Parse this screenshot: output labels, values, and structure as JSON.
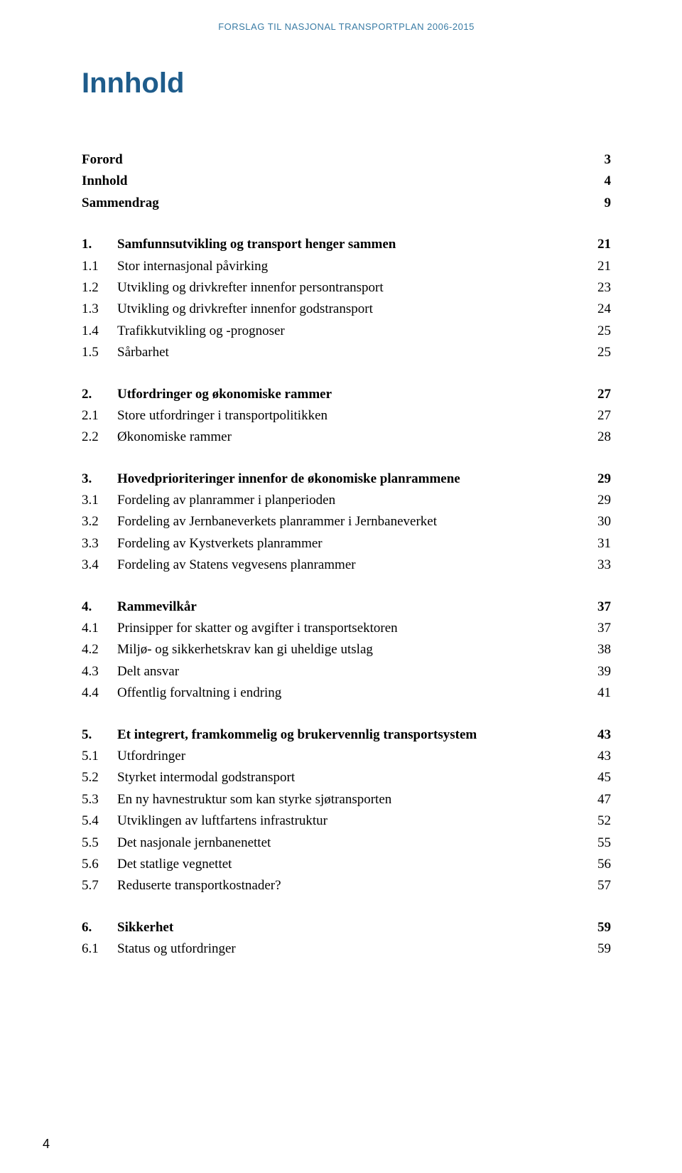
{
  "colors": {
    "header_text": "#3a7ca5",
    "title_text": "#1e5c8b",
    "body_text": "#000000",
    "background": "#ffffff"
  },
  "typography": {
    "header_font": "Arial",
    "title_font": "Arial",
    "body_font": "Times New Roman",
    "header_size_pt": 10,
    "title_size_pt": 30,
    "body_size_pt": 14
  },
  "header": "FORSLAG TIL NASJONAL TRANSPORTPLAN 2006-2015",
  "title": "Innhold",
  "front": [
    {
      "label": "Forord",
      "page": "3"
    },
    {
      "label": "Innhold",
      "page": "4"
    },
    {
      "label": "Sammendrag",
      "page": "9"
    }
  ],
  "sections": [
    {
      "num": "1.",
      "title": "Samfunnsutvikling og transport henger sammen",
      "page": "21",
      "items": [
        {
          "num": "1.1",
          "label": "Stor internasjonal påvirking",
          "page": "21"
        },
        {
          "num": "1.2",
          "label": "Utvikling og drivkrefter innenfor persontransport",
          "page": "23"
        },
        {
          "num": "1.3",
          "label": "Utvikling og drivkrefter innenfor godstransport",
          "page": "24"
        },
        {
          "num": "1.4",
          "label": "Trafikkutvikling og -prognoser",
          "page": "25"
        },
        {
          "num": "1.5",
          "label": "Sårbarhet",
          "page": "25"
        }
      ]
    },
    {
      "num": "2.",
      "title": "Utfordringer og økonomiske rammer",
      "page": "27",
      "items": [
        {
          "num": "2.1",
          "label": "Store utfordringer i transportpolitikken",
          "page": "27"
        },
        {
          "num": "2.2",
          "label": "Økonomiske rammer",
          "page": "28"
        }
      ]
    },
    {
      "num": "3.",
      "title": "Hovedprioriteringer innenfor de økonomiske planrammene",
      "page": "29",
      "items": [
        {
          "num": "3.1",
          "label": "Fordeling av planrammer i planperioden",
          "page": "29"
        },
        {
          "num": "3.2",
          "label": "Fordeling av Jernbaneverkets planrammer i Jernbaneverket",
          "page": "30"
        },
        {
          "num": "3.3",
          "label": "Fordeling av Kystverkets planrammer",
          "page": "31"
        },
        {
          "num": "3.4",
          "label": "Fordeling av Statens vegvesens planrammer",
          "page": "33"
        }
      ]
    },
    {
      "num": "4.",
      "title": "Rammevilkår",
      "page": "37",
      "items": [
        {
          "num": "4.1",
          "label": "Prinsipper for skatter og avgifter i transportsektoren",
          "page": "37"
        },
        {
          "num": "4.2",
          "label": "Miljø- og sikkerhetskrav kan gi uheldige utslag",
          "page": "38"
        },
        {
          "num": "4.3",
          "label": "Delt ansvar",
          "page": "39"
        },
        {
          "num": "4.4",
          "label": "Offentlig forvaltning i endring",
          "page": "41"
        }
      ]
    },
    {
      "num": "5.",
      "title": "Et integrert, framkommelig og brukervennlig transportsystem",
      "page": "43",
      "items": [
        {
          "num": "5.1",
          "label": "Utfordringer",
          "page": "43"
        },
        {
          "num": "5.2",
          "label": "Styrket intermodal godstransport",
          "page": "45"
        },
        {
          "num": "5.3",
          "label": "En ny havnestruktur som kan styrke sjøtransporten",
          "page": "47"
        },
        {
          "num": "5.4",
          "label": "Utviklingen av luftfartens infrastruktur",
          "page": "52"
        },
        {
          "num": "5.5",
          "label": "Det nasjonale jernbanenettet",
          "page": "55"
        },
        {
          "num": "5.6",
          "label": "Det statlige vegnettet",
          "page": "56"
        },
        {
          "num": "5.7",
          "label": "Reduserte transportkostnader?",
          "page": "57"
        }
      ]
    },
    {
      "num": "6.",
      "title": "Sikkerhet",
      "page": "59",
      "items": [
        {
          "num": "6.1",
          "label": "Status og utfordringer",
          "page": "59"
        }
      ]
    }
  ],
  "footer_page": "4"
}
